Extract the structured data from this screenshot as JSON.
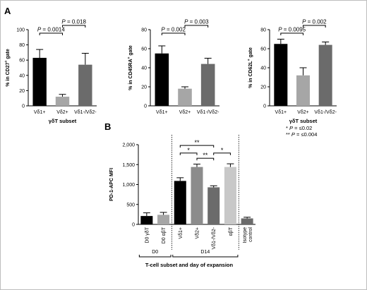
{
  "panel_a_letter": "A",
  "panel_b_letter": "B",
  "chart_data": [
    {
      "type": "bar",
      "panel": "A",
      "categories": [
        "Vδ1+",
        "Vδ2+",
        "Vδ1-/Vδ2-"
      ],
      "values": [
        63,
        12,
        54
      ],
      "errors": [
        11,
        3,
        15
      ],
      "colors": [
        "#000000",
        "#a6a6a6",
        "#6b6b6b"
      ],
      "ylabel_parts": [
        "% in CD27",
        "+",
        " gate"
      ],
      "xlabel": "γδT subset",
      "ylim": [
        0,
        100
      ],
      "yticks": [
        0,
        20,
        40,
        60,
        80,
        100
      ],
      "comparisons": [
        {
          "from": 0,
          "to": 1,
          "label": "P = 0.0014"
        },
        {
          "from": 1,
          "to": 2,
          "label": "P = 0.018"
        }
      ]
    },
    {
      "type": "bar",
      "panel": "A",
      "categories": [
        "Vδ1+",
        "Vδ2+",
        "Vδ1-/Vδ2-"
      ],
      "values": [
        55,
        18,
        44
      ],
      "errors": [
        8,
        2,
        6
      ],
      "colors": [
        "#000000",
        "#a6a6a6",
        "#6b6b6b"
      ],
      "ylabel_parts": [
        "% in CD45RA",
        "+",
        " gate"
      ],
      "xlabel": "",
      "ylim": [
        0,
        80
      ],
      "yticks": [
        0,
        20,
        40,
        60,
        80
      ],
      "comparisons": [
        {
          "from": 0,
          "to": 1,
          "label": "P = 0.002"
        },
        {
          "from": 1,
          "to": 2,
          "label": "P = 0.003"
        }
      ]
    },
    {
      "type": "bar",
      "panel": "A",
      "categories": [
        "Vδ1+",
        "Vδ2+",
        "Vδ1-/Vδ2-"
      ],
      "values": [
        65,
        32,
        64
      ],
      "errors": [
        5,
        8,
        3
      ],
      "colors": [
        "#000000",
        "#a6a6a6",
        "#6b6b6b"
      ],
      "ylabel_parts": [
        "% in CD62L",
        "+",
        " gate"
      ],
      "xlabel": "γδT subset",
      "ylim": [
        0,
        80
      ],
      "yticks": [
        0,
        20,
        40,
        60,
        80
      ],
      "comparisons": [
        {
          "from": 0,
          "to": 1,
          "label": "P = 0.0095"
        },
        {
          "from": 1,
          "to": 2,
          "label": "P = 0.002"
        }
      ]
    },
    {
      "type": "bar",
      "panel": "B",
      "categories": [
        "D0 γδT",
        "D0 αβT",
        "Vδ1+",
        "Vδ2+",
        "Vδ1-/Vδ2-",
        "αβT",
        "Isotype control"
      ],
      "values": [
        210,
        240,
        1090,
        1440,
        930,
        1440,
        150
      ],
      "errors": [
        80,
        60,
        80,
        70,
        40,
        80,
        30
      ],
      "colors": [
        "#000000",
        "#a6a6a6",
        "#000000",
        "#8c8c8c",
        "#6b6b6b",
        "#c8c8c8",
        "#6b6b6b"
      ],
      "ylabel": "PD-1-APC MFI",
      "xlabel": "T-cell subset and day of expansion",
      "ylim": [
        0,
        2000
      ],
      "yticks": [
        0,
        500,
        1000,
        1500,
        2000
      ],
      "ytick_labels": [
        "0",
        "500",
        "1,000",
        "1,500",
        "2,000"
      ],
      "groups": [
        {
          "label": "D0",
          "from": 0,
          "to": 1
        },
        {
          "label": "D14",
          "from": 2,
          "to": 5
        }
      ],
      "comparisons": [
        {
          "from": 2,
          "to": 3,
          "label": "*",
          "level": 0
        },
        {
          "from": 4,
          "to": 5,
          "label": "*",
          "level": 0
        },
        {
          "from": 2,
          "to": 4,
          "label": "**",
          "level": 1
        },
        {
          "from": 3,
          "to": 4,
          "label": "**",
          "level": 2
        }
      ],
      "legend": [
        "* P = ≤0.02",
        "** P = ≤0.004"
      ]
    }
  ]
}
